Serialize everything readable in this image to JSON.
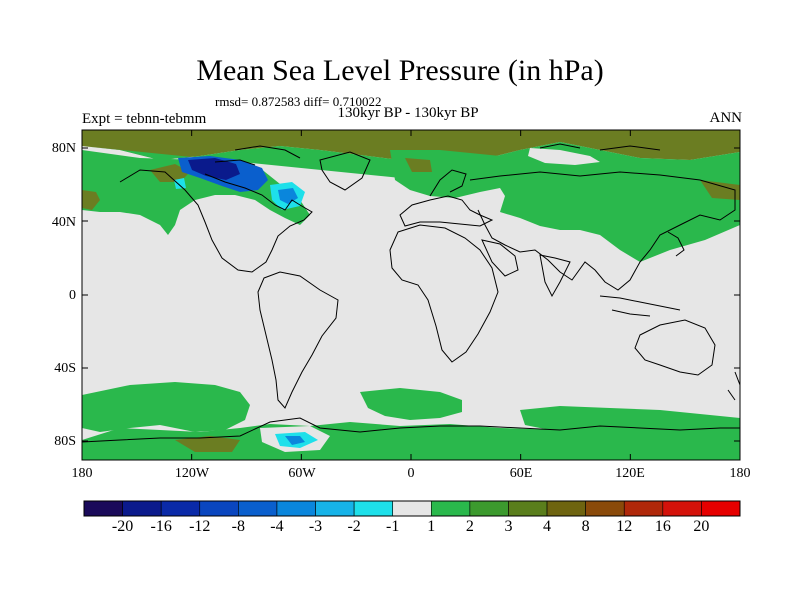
{
  "title": "Mean Sea Level Pressure (in hPa)",
  "stats": "rmsd= 0.872583  diff= 0.710022",
  "experiment": "Expt = tebnn-tebmm",
  "period": "130kyr BP - 130kyr BP",
  "season": "ANN",
  "lat_labels": [
    "80N",
    "40N",
    "0",
    "40S",
    "80S"
  ],
  "lon_labels": [
    "180",
    "120W",
    "60W",
    "0",
    "60E",
    "120E",
    "180"
  ],
  "colorbar": {
    "labels": [
      "-20",
      "-16",
      "-12",
      "-8",
      "-4",
      "-3",
      "-2",
      "-1",
      "1",
      "2",
      "3",
      "4",
      "8",
      "12",
      "16",
      "20"
    ],
    "colors": [
      "#1a0a5a",
      "#0b1a8c",
      "#0a2aa8",
      "#0a46bf",
      "#0a5fcd",
      "#0a86dc",
      "#16b3e8",
      "#1ee0ea",
      "#e6e6e6",
      "#2ab84c",
      "#3c9a2e",
      "#5a7e1c",
      "#6e6410",
      "#8a4a0a",
      "#b0280a",
      "#d4120a",
      "#e60000"
    ]
  },
  "colors": {
    "neutral": "#e6e6e6",
    "green": "#2ab84c",
    "olive": "#6b7d22",
    "blue_dark": "#0a1a8c",
    "blue_mid": "#0a5fcd",
    "cyan": "#1ee0ea"
  }
}
